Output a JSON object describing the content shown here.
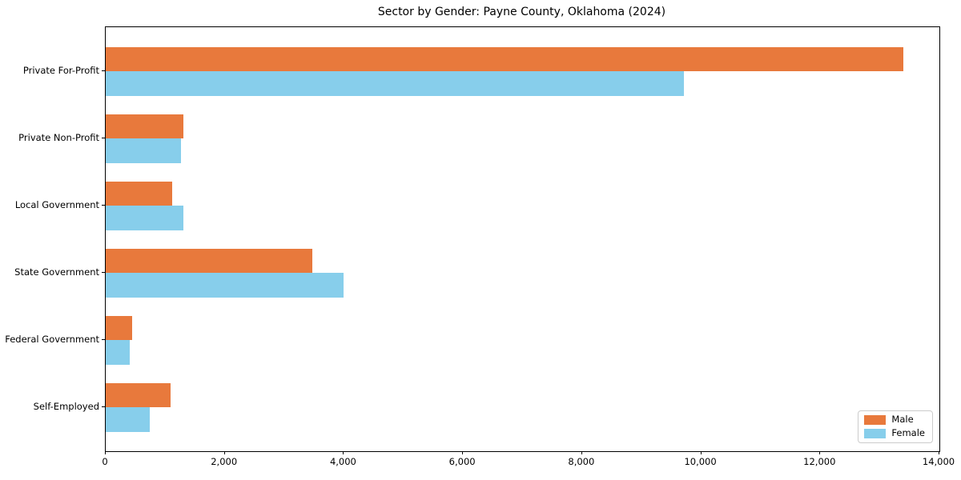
{
  "chart_data": {
    "type": "bar",
    "orientation": "horizontal",
    "title": "Sector by Gender: Payne County, Oklahoma (2024)",
    "categories": [
      "Private For-Profit",
      "Private Non-Profit",
      "Local Government",
      "State Government",
      "Federal Government",
      "Self-Employed"
    ],
    "series": [
      {
        "name": "Male",
        "color": "#e8793c",
        "values": [
          13400,
          1310,
          1120,
          3470,
          450,
          1090
        ]
      },
      {
        "name": "Female",
        "color": "#87ceeb",
        "values": [
          9710,
          1270,
          1310,
          3990,
          400,
          740
        ]
      }
    ],
    "xlim": [
      0,
      14000
    ],
    "xticks": [
      {
        "value": 0,
        "label": "0"
      },
      {
        "value": 2000,
        "label": "2,000"
      },
      {
        "value": 4000,
        "label": "4,000"
      },
      {
        "value": 6000,
        "label": "6,000"
      },
      {
        "value": 8000,
        "label": "8,000"
      },
      {
        "value": 10000,
        "label": "10,000"
      },
      {
        "value": 12000,
        "label": "12,000"
      },
      {
        "value": 14000,
        "label": "14,000"
      }
    ],
    "legend": {
      "position": "lower right",
      "entries": [
        "Male",
        "Female"
      ]
    },
    "grid": false,
    "background_color": "#ffffff",
    "axis_color": "#000000"
  }
}
